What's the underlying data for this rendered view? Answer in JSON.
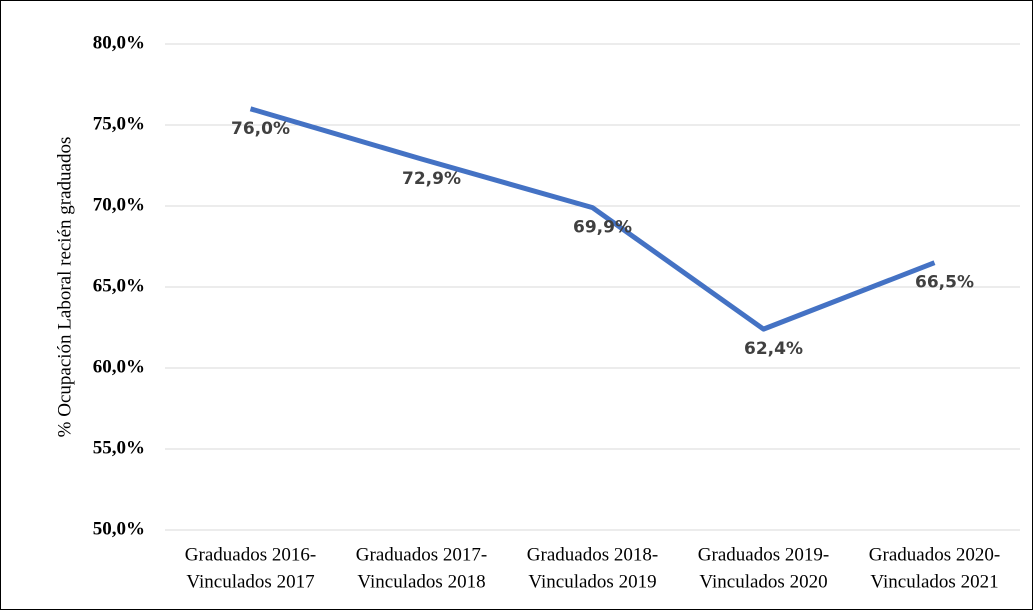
{
  "chart_data": {
    "type": "line",
    "y_axis_label": "% Ocupación Laboral recién graduados",
    "categories": [
      [
        "Graduados 2016-",
        "Vinculados 2017"
      ],
      [
        "Graduados 2017-",
        "Vinculados 2018"
      ],
      [
        "Graduados 2018-",
        "Vinculados 2019"
      ],
      [
        "Graduados 2019-",
        "Vinculados 2020"
      ],
      [
        "Graduados 2020-",
        "Vinculados 2021"
      ]
    ],
    "series": [
      {
        "color": "#4472c4",
        "values": [
          76.0,
          72.9,
          69.9,
          62.4,
          66.5
        ],
        "value_labels": [
          "76,0%",
          "72,9%",
          "69,9%",
          "62,4%",
          "66,5%"
        ]
      }
    ],
    "ylim": [
      50,
      80
    ],
    "yticks": [
      {
        "value": 50,
        "label": "50,0%"
      },
      {
        "value": 55,
        "label": "55,0%"
      },
      {
        "value": 60,
        "label": "60,0%"
      },
      {
        "value": 65,
        "label": "65,0%"
      },
      {
        "value": 70,
        "label": "70,0%"
      },
      {
        "value": 75,
        "label": "75,0%"
      },
      {
        "value": 80,
        "label": "80,0%"
      }
    ],
    "grid": true
  }
}
